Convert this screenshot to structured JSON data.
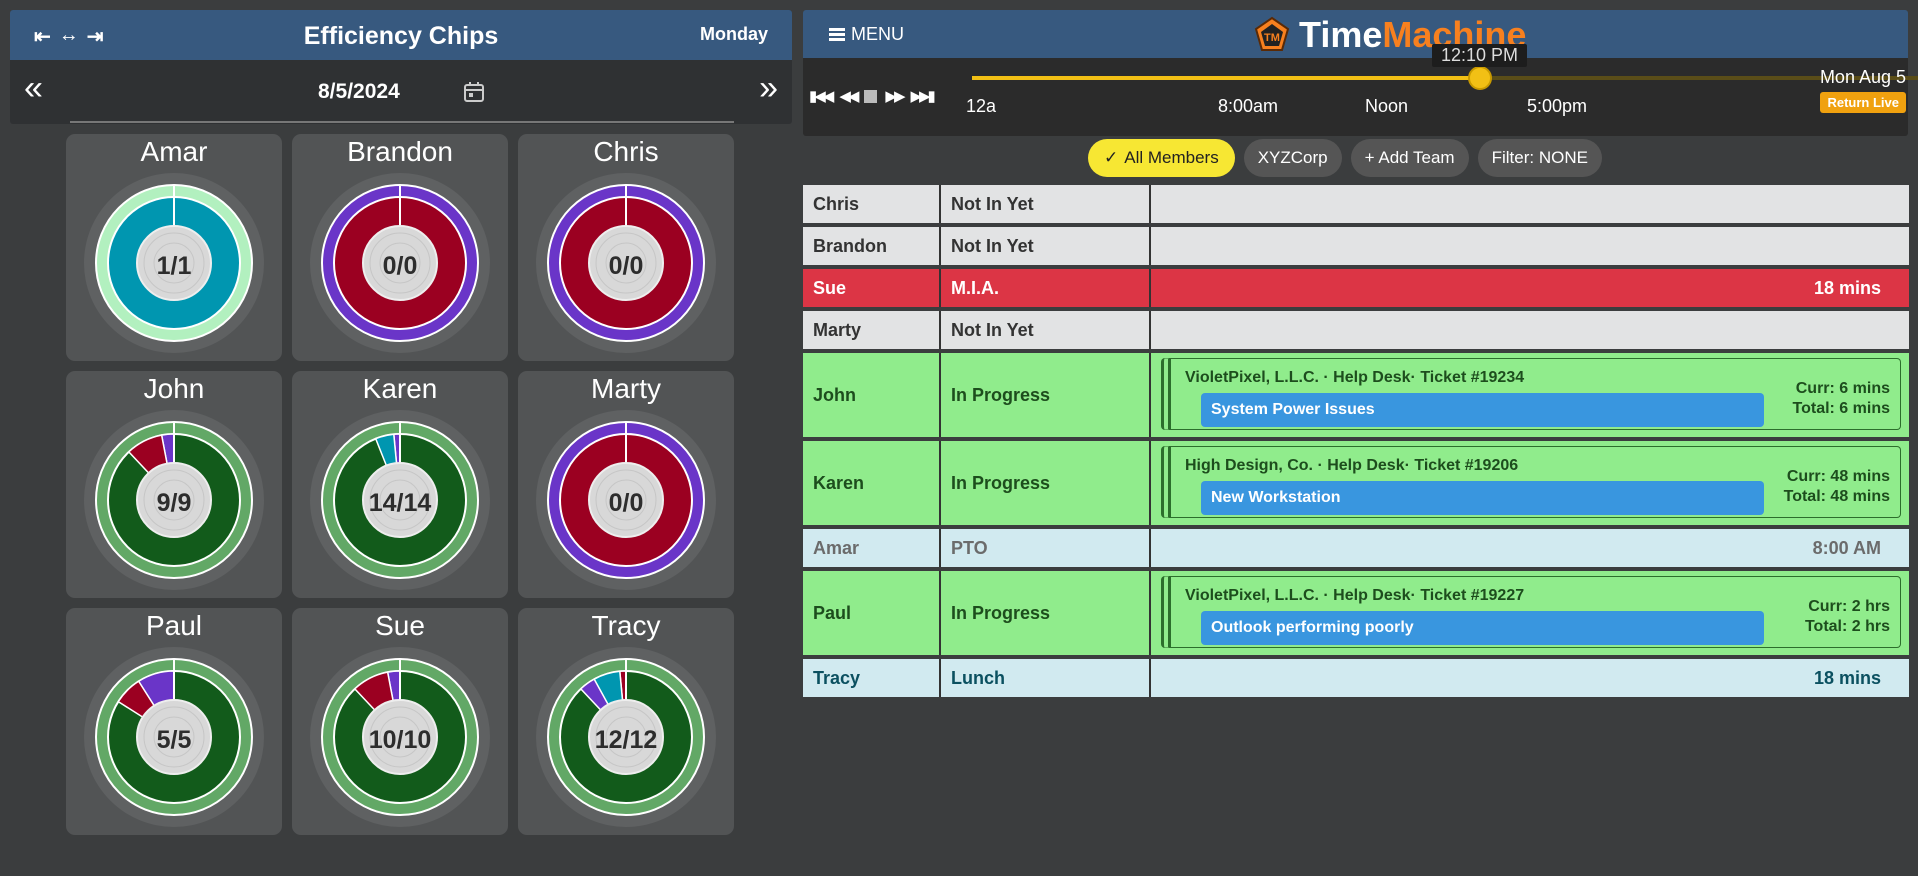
{
  "left": {
    "title": "Efficiency Chips",
    "day": "Monday",
    "date": "8/5/2024",
    "icons": [
      "collapse-left-icon",
      "expand-icon",
      "collapse-right-icon"
    ]
  },
  "colors": {
    "ring_light_green": "#b2f0bf",
    "inner_teal": "#0096b0",
    "ring_purple": "#6a35c8",
    "inner_red": "#9b0021",
    "ring_green": "#62a866",
    "inner_green": "#125b1b",
    "seg_purple": "#6a35c8",
    "seg_red": "#9b0021",
    "seg_teal": "#0096b0"
  },
  "chips": [
    {
      "name": "Amar",
      "score": "1/1",
      "outer": "lightgreen",
      "inner": "teal",
      "segments": []
    },
    {
      "name": "Brandon",
      "score": "0/0",
      "outer": "purple",
      "inner": "red",
      "segments": []
    },
    {
      "name": "Chris",
      "score": "0/0",
      "outer": "purple",
      "inner": "red",
      "segments": []
    },
    {
      "name": "John",
      "score": "9/9",
      "outer": "green",
      "inner": "green",
      "segments": [
        {
          "color": "purple",
          "from": 0.97,
          "to": 1.0
        },
        {
          "color": "red",
          "from": 0.88,
          "to": 0.97
        }
      ]
    },
    {
      "name": "Karen",
      "score": "14/14",
      "outer": "green",
      "inner": "green",
      "segments": [
        {
          "color": "purple",
          "from": 0.985,
          "to": 1.0
        },
        {
          "color": "teal",
          "from": 0.94,
          "to": 0.985
        }
      ]
    },
    {
      "name": "Marty",
      "score": "0/0",
      "outer": "purple",
      "inner": "red",
      "segments": []
    },
    {
      "name": "Paul",
      "score": "5/5",
      "outer": "green",
      "inner": "green",
      "segments": [
        {
          "color": "purple",
          "from": 0.91,
          "to": 1.0
        },
        {
          "color": "red",
          "from": 0.84,
          "to": 0.91
        }
      ]
    },
    {
      "name": "Sue",
      "score": "10/10",
      "outer": "green",
      "inner": "green",
      "segments": [
        {
          "color": "purple",
          "from": 0.97,
          "to": 1.0
        },
        {
          "color": "red",
          "from": 0.88,
          "to": 0.97
        }
      ]
    },
    {
      "name": "Tracy",
      "score": "12/12",
      "outer": "green",
      "inner": "green",
      "segments": [
        {
          "color": "red",
          "from": 0.985,
          "to": 1.0
        },
        {
          "color": "purple",
          "from": 0.88,
          "to": 0.96
        },
        {
          "color": "teal",
          "from": 0.92,
          "to": 0.985
        }
      ]
    }
  ],
  "tm": {
    "menu_label": "MENU",
    "logo_text": "TM",
    "brand_time": "Time",
    "brand_machine": "Machine",
    "current_time": "12:10 PM",
    "progress": 0.507,
    "ticks": [
      "12a",
      "8:00am",
      "Noon",
      "5:00pm"
    ],
    "date": "Mon Aug 5",
    "return_live": "Return Live"
  },
  "filters": {
    "all_members": "All Members",
    "team": "XYZCorp",
    "add_team": "+ Add Team",
    "filter": "Filter: NONE"
  },
  "roster": [
    {
      "name": "Chris",
      "status": "Not In Yet",
      "style": "grey",
      "right": ""
    },
    {
      "name": "Brandon",
      "status": "Not In Yet",
      "style": "grey",
      "right": ""
    },
    {
      "name": "Sue",
      "status": "M.I.A.",
      "style": "red",
      "right": "18 mins"
    },
    {
      "name": "Marty",
      "status": "Not In Yet",
      "style": "grey",
      "right": ""
    },
    {
      "name": "John",
      "status": "In Progress",
      "style": "green",
      "ticket": {
        "title": "VioletPixel, L.L.C. · Help Desk· Ticket #19234",
        "subject": "System Power Issues",
        "curr": "Curr: 6 mins",
        "total": "Total: 6 mins"
      }
    },
    {
      "name": "Karen",
      "status": "In Progress",
      "style": "green",
      "ticket": {
        "title": "High Design, Co. · Help Desk· Ticket #19206",
        "subject": "New Workstation",
        "curr": "Curr: 48 mins",
        "total": "Total: 48 mins"
      }
    },
    {
      "name": "Amar",
      "status": "PTO",
      "style": "blue",
      "right": "8:00 AM"
    },
    {
      "name": "Paul",
      "status": "In Progress",
      "style": "green",
      "ticket": {
        "title": "VioletPixel, L.L.C. · Help Desk· Ticket #19227",
        "subject": "Outlook performing poorly",
        "curr": "Curr: 2 hrs",
        "total": "Total: 2 hrs"
      }
    },
    {
      "name": "Tracy",
      "status": "Lunch",
      "style": "blue dark",
      "right": "18 mins"
    }
  ]
}
